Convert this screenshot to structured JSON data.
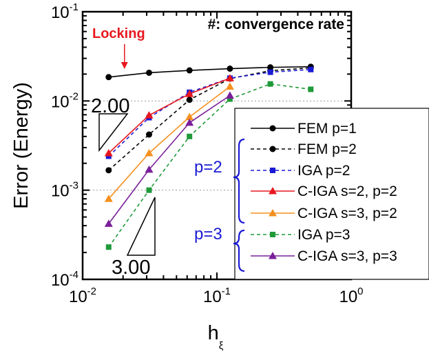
{
  "chart_data": {
    "type": "line",
    "title": "#: convergence rate",
    "xlabel": "h",
    "xlabel_subscript": "ξ",
    "ylabel": "Error (Energy)",
    "xscale": "log",
    "yscale": "log",
    "xlim": [
      0.01,
      1
    ],
    "ylim": [
      0.0001,
      0.1
    ],
    "x_ticks": [
      {
        "base": "10",
        "exp": "-2"
      },
      {
        "base": "10",
        "exp": "-1"
      },
      {
        "base": "10",
        "exp": "0"
      }
    ],
    "y_ticks": [
      {
        "base": "10",
        "exp": "-4"
      },
      {
        "base": "10",
        "exp": "-3"
      },
      {
        "base": "10",
        "exp": "-2"
      },
      {
        "base": "10",
        "exp": "-1"
      }
    ],
    "grid_y_values": [
      0.01,
      0.001
    ],
    "legend_position": "lower-right",
    "annotations": {
      "locking_label": "Locking",
      "locking_color": "#e8171e",
      "locking_x": 0.0205,
      "slope_top_label": "2.00",
      "slope_bottom_label": "3.00"
    },
    "groups": [
      {
        "label": "p=2",
        "color": "#1a1ad6"
      },
      {
        "label": "p=3",
        "color": "#1a1ad6"
      }
    ],
    "series": [
      {
        "name": "FEM p=1",
        "color": "#000000",
        "dash": "solid",
        "marker": "circle",
        "x": [
          0.015625,
          0.03125,
          0.0625,
          0.125,
          0.25,
          0.5
        ],
        "y": [
          0.0185,
          0.0207,
          0.022,
          0.023,
          0.0238,
          0.0242
        ]
      },
      {
        "name": "FEM p=2",
        "color": "#000000",
        "dash": "dashed",
        "marker": "circle",
        "x": [
          0.015625,
          0.03125,
          0.0625,
          0.125,
          0.25,
          0.5
        ],
        "y": [
          0.00167,
          0.0042,
          0.0103,
          0.0178,
          0.0218,
          0.0235
        ]
      },
      {
        "name": "IGA p=2",
        "color": "#1a1ad6",
        "dash": "dashed",
        "marker": "square",
        "x": [
          0.015625,
          0.03125,
          0.0625,
          0.125,
          0.25,
          0.5
        ],
        "y": [
          0.0024,
          0.0065,
          0.0125,
          0.018,
          0.021,
          0.0225
        ]
      },
      {
        "name": "C-IGA s=2, p=2",
        "color": "#e8171e",
        "dash": "solid",
        "marker": "triangle",
        "x": [
          0.015625,
          0.03125,
          0.0625,
          0.125
        ],
        "y": [
          0.0026,
          0.0069,
          0.012,
          0.018
        ]
      },
      {
        "name": "C-IGA s=3, p=2",
        "color": "#f5901e",
        "dash": "solid",
        "marker": "triangle",
        "x": [
          0.015625,
          0.03125,
          0.0625,
          0.125
        ],
        "y": [
          0.0008,
          0.0026,
          0.0066,
          0.0145
        ]
      },
      {
        "name": "IGA p=3",
        "color": "#1f9a3a",
        "dash": "dashed",
        "marker": "square",
        "x": [
          0.015625,
          0.03125,
          0.0625,
          0.125,
          0.25,
          0.5
        ],
        "y": [
          0.00023,
          0.001,
          0.004,
          0.0105,
          0.0155,
          0.0135
        ]
      },
      {
        "name": "C-IGA s=3, p=3",
        "color": "#7a1f9a",
        "dash": "solid",
        "marker": "triangle",
        "x": [
          0.015625,
          0.03125,
          0.0625,
          0.125
        ],
        "y": [
          0.00042,
          0.0017,
          0.0057,
          0.0115
        ]
      }
    ]
  }
}
